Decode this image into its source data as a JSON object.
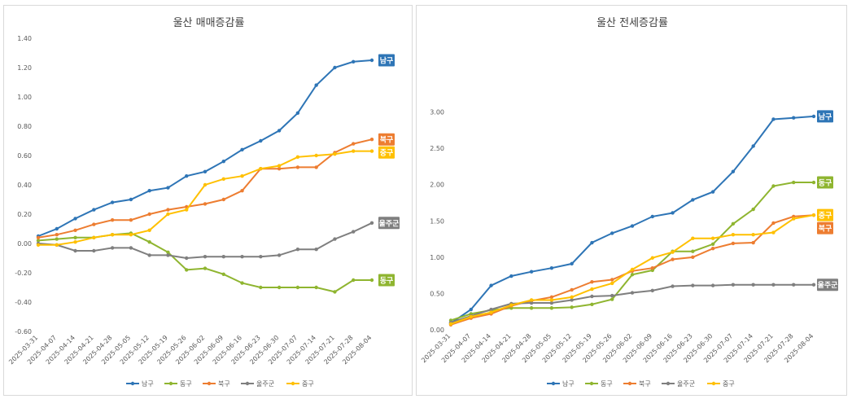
{
  "chart_data": [
    {
      "type": "line",
      "title": "울산 매매증감률",
      "x": [
        "2025-03-31",
        "2025-04-07",
        "2025-04-14",
        "2025-04-21",
        "2025-04-28",
        "2025-05-05",
        "2025-05-12",
        "2025-05-19",
        "2025-05-26",
        "2025-06-02",
        "2025-06-09",
        "2025-06-16",
        "2025-06-23",
        "2025-06-30",
        "2025-07-07",
        "2025-07-14",
        "2025-07-21",
        "2025-07-28",
        "2025-08-04"
      ],
      "ylim": [
        -0.6,
        1.4
      ],
      "yticks": [
        "-0.60",
        "-0.40",
        "-0.20",
        "0.00",
        "0.20",
        "0.40",
        "0.60",
        "0.80",
        "1.00",
        "1.20",
        "1.40"
      ],
      "grid": false,
      "legend": "bottom",
      "series": [
        {
          "name": "남구",
          "color": "#2e75b6",
          "values": [
            0.05,
            0.1,
            0.17,
            0.23,
            0.28,
            0.3,
            0.36,
            0.38,
            0.46,
            0.49,
            0.56,
            0.64,
            0.7,
            0.77,
            0.89,
            1.08,
            1.2,
            1.24,
            1.25
          ]
        },
        {
          "name": "동구",
          "color": "#8fb530",
          "values": [
            0.02,
            0.03,
            0.04,
            0.04,
            0.06,
            0.07,
            0.01,
            -0.06,
            -0.18,
            -0.17,
            -0.21,
            -0.27,
            -0.3,
            -0.3,
            -0.3,
            -0.3,
            -0.33,
            -0.25,
            -0.25
          ]
        },
        {
          "name": "북구",
          "color": "#ed7d31",
          "values": [
            0.04,
            0.06,
            0.09,
            0.13,
            0.16,
            0.16,
            0.2,
            0.23,
            0.25,
            0.27,
            0.3,
            0.36,
            0.51,
            0.51,
            0.52,
            0.52,
            0.62,
            0.68,
            0.71
          ]
        },
        {
          "name": "울주군",
          "color": "#7f7f7f",
          "values": [
            0.0,
            -0.01,
            -0.05,
            -0.05,
            -0.03,
            -0.03,
            -0.08,
            -0.08,
            -0.1,
            -0.09,
            -0.09,
            -0.09,
            -0.09,
            -0.08,
            -0.04,
            -0.04,
            0.03,
            0.08,
            0.14
          ]
        },
        {
          "name": "중구",
          "color": "#ffc000",
          "values": [
            -0.01,
            -0.01,
            0.01,
            0.04,
            0.06,
            0.06,
            0.09,
            0.2,
            0.23,
            0.4,
            0.44,
            0.46,
            0.51,
            0.53,
            0.59,
            0.6,
            0.61,
            0.63,
            0.63
          ]
        }
      ],
      "end_labels": [
        {
          "text": "남구",
          "series": "남구",
          "color": "#2e75b6"
        },
        {
          "text": "북구",
          "series": "북구",
          "color": "#ed7d31"
        },
        {
          "text": "중구",
          "series": "중구",
          "color": "#ffc000"
        },
        {
          "text": "울주군",
          "series": "울주군",
          "color": "#7f7f7f"
        },
        {
          "text": "동구",
          "series": "동구",
          "color": "#8fb530"
        }
      ]
    },
    {
      "type": "line",
      "title": "울산 전세증감률",
      "x": [
        "2025-03-31",
        "2025-04-07",
        "2025-04-14",
        "2025-04-21",
        "2025-04-28",
        "2025-05-05",
        "2025-05-12",
        "2025-05-19",
        "2025-05-26",
        "2025-06-02",
        "2025-06-09",
        "2025-06-16",
        "2025-06-23",
        "2025-06-30",
        "2025-07-07",
        "2025-07-14",
        "2025-07-21",
        "2025-07-28",
        "2025-08-04"
      ],
      "ylim": [
        0,
        3.5
      ],
      "yticks": [
        "0.00",
        "0.50",
        "1.00",
        "1.50",
        "2.00",
        "2.50",
        "3.00"
      ],
      "grid": false,
      "legend": "bottom",
      "series": [
        {
          "name": "남구",
          "color": "#2e75b6",
          "values": [
            0.09,
            0.28,
            0.61,
            0.74,
            0.8,
            0.85,
            0.91,
            1.2,
            1.33,
            1.43,
            1.56,
            1.61,
            1.79,
            1.9,
            2.18,
            2.53,
            2.9,
            2.92,
            2.94
          ]
        },
        {
          "name": "동구",
          "color": "#8fb530",
          "values": [
            0.13,
            0.22,
            0.27,
            0.3,
            0.3,
            0.3,
            0.31,
            0.35,
            0.42,
            0.76,
            0.82,
            1.08,
            1.08,
            1.18,
            1.46,
            1.66,
            1.98,
            2.03,
            2.03
          ]
        },
        {
          "name": "북구",
          "color": "#ed7d31",
          "values": [
            0.07,
            0.16,
            0.22,
            0.33,
            0.4,
            0.45,
            0.55,
            0.66,
            0.69,
            0.81,
            0.85,
            0.97,
            1.0,
            1.12,
            1.19,
            1.2,
            1.47,
            1.56,
            1.58
          ]
        },
        {
          "name": "울주군",
          "color": "#7f7f7f",
          "values": [
            0.1,
            0.19,
            0.28,
            0.36,
            0.37,
            0.37,
            0.41,
            0.46,
            0.47,
            0.51,
            0.54,
            0.6,
            0.61,
            0.61,
            0.62,
            0.62,
            0.62,
            0.62,
            0.62
          ]
        },
        {
          "name": "중구",
          "color": "#ffc000",
          "values": [
            0.08,
            0.18,
            0.24,
            0.34,
            0.41,
            0.41,
            0.45,
            0.56,
            0.64,
            0.83,
            0.99,
            1.07,
            1.26,
            1.26,
            1.31,
            1.31,
            1.34,
            1.53,
            1.58
          ]
        }
      ],
      "end_labels": [
        {
          "text": "남구",
          "series": "남구",
          "color": "#2e75b6"
        },
        {
          "text": "동구",
          "series": "동구",
          "color": "#8fb530"
        },
        {
          "text": "중구",
          "series": "중구",
          "color": "#ffc000"
        },
        {
          "text": "북구",
          "series": "북구",
          "color": "#ed7d31"
        },
        {
          "text": "울주군",
          "series": "울주군",
          "color": "#7f7f7f"
        }
      ]
    }
  ]
}
